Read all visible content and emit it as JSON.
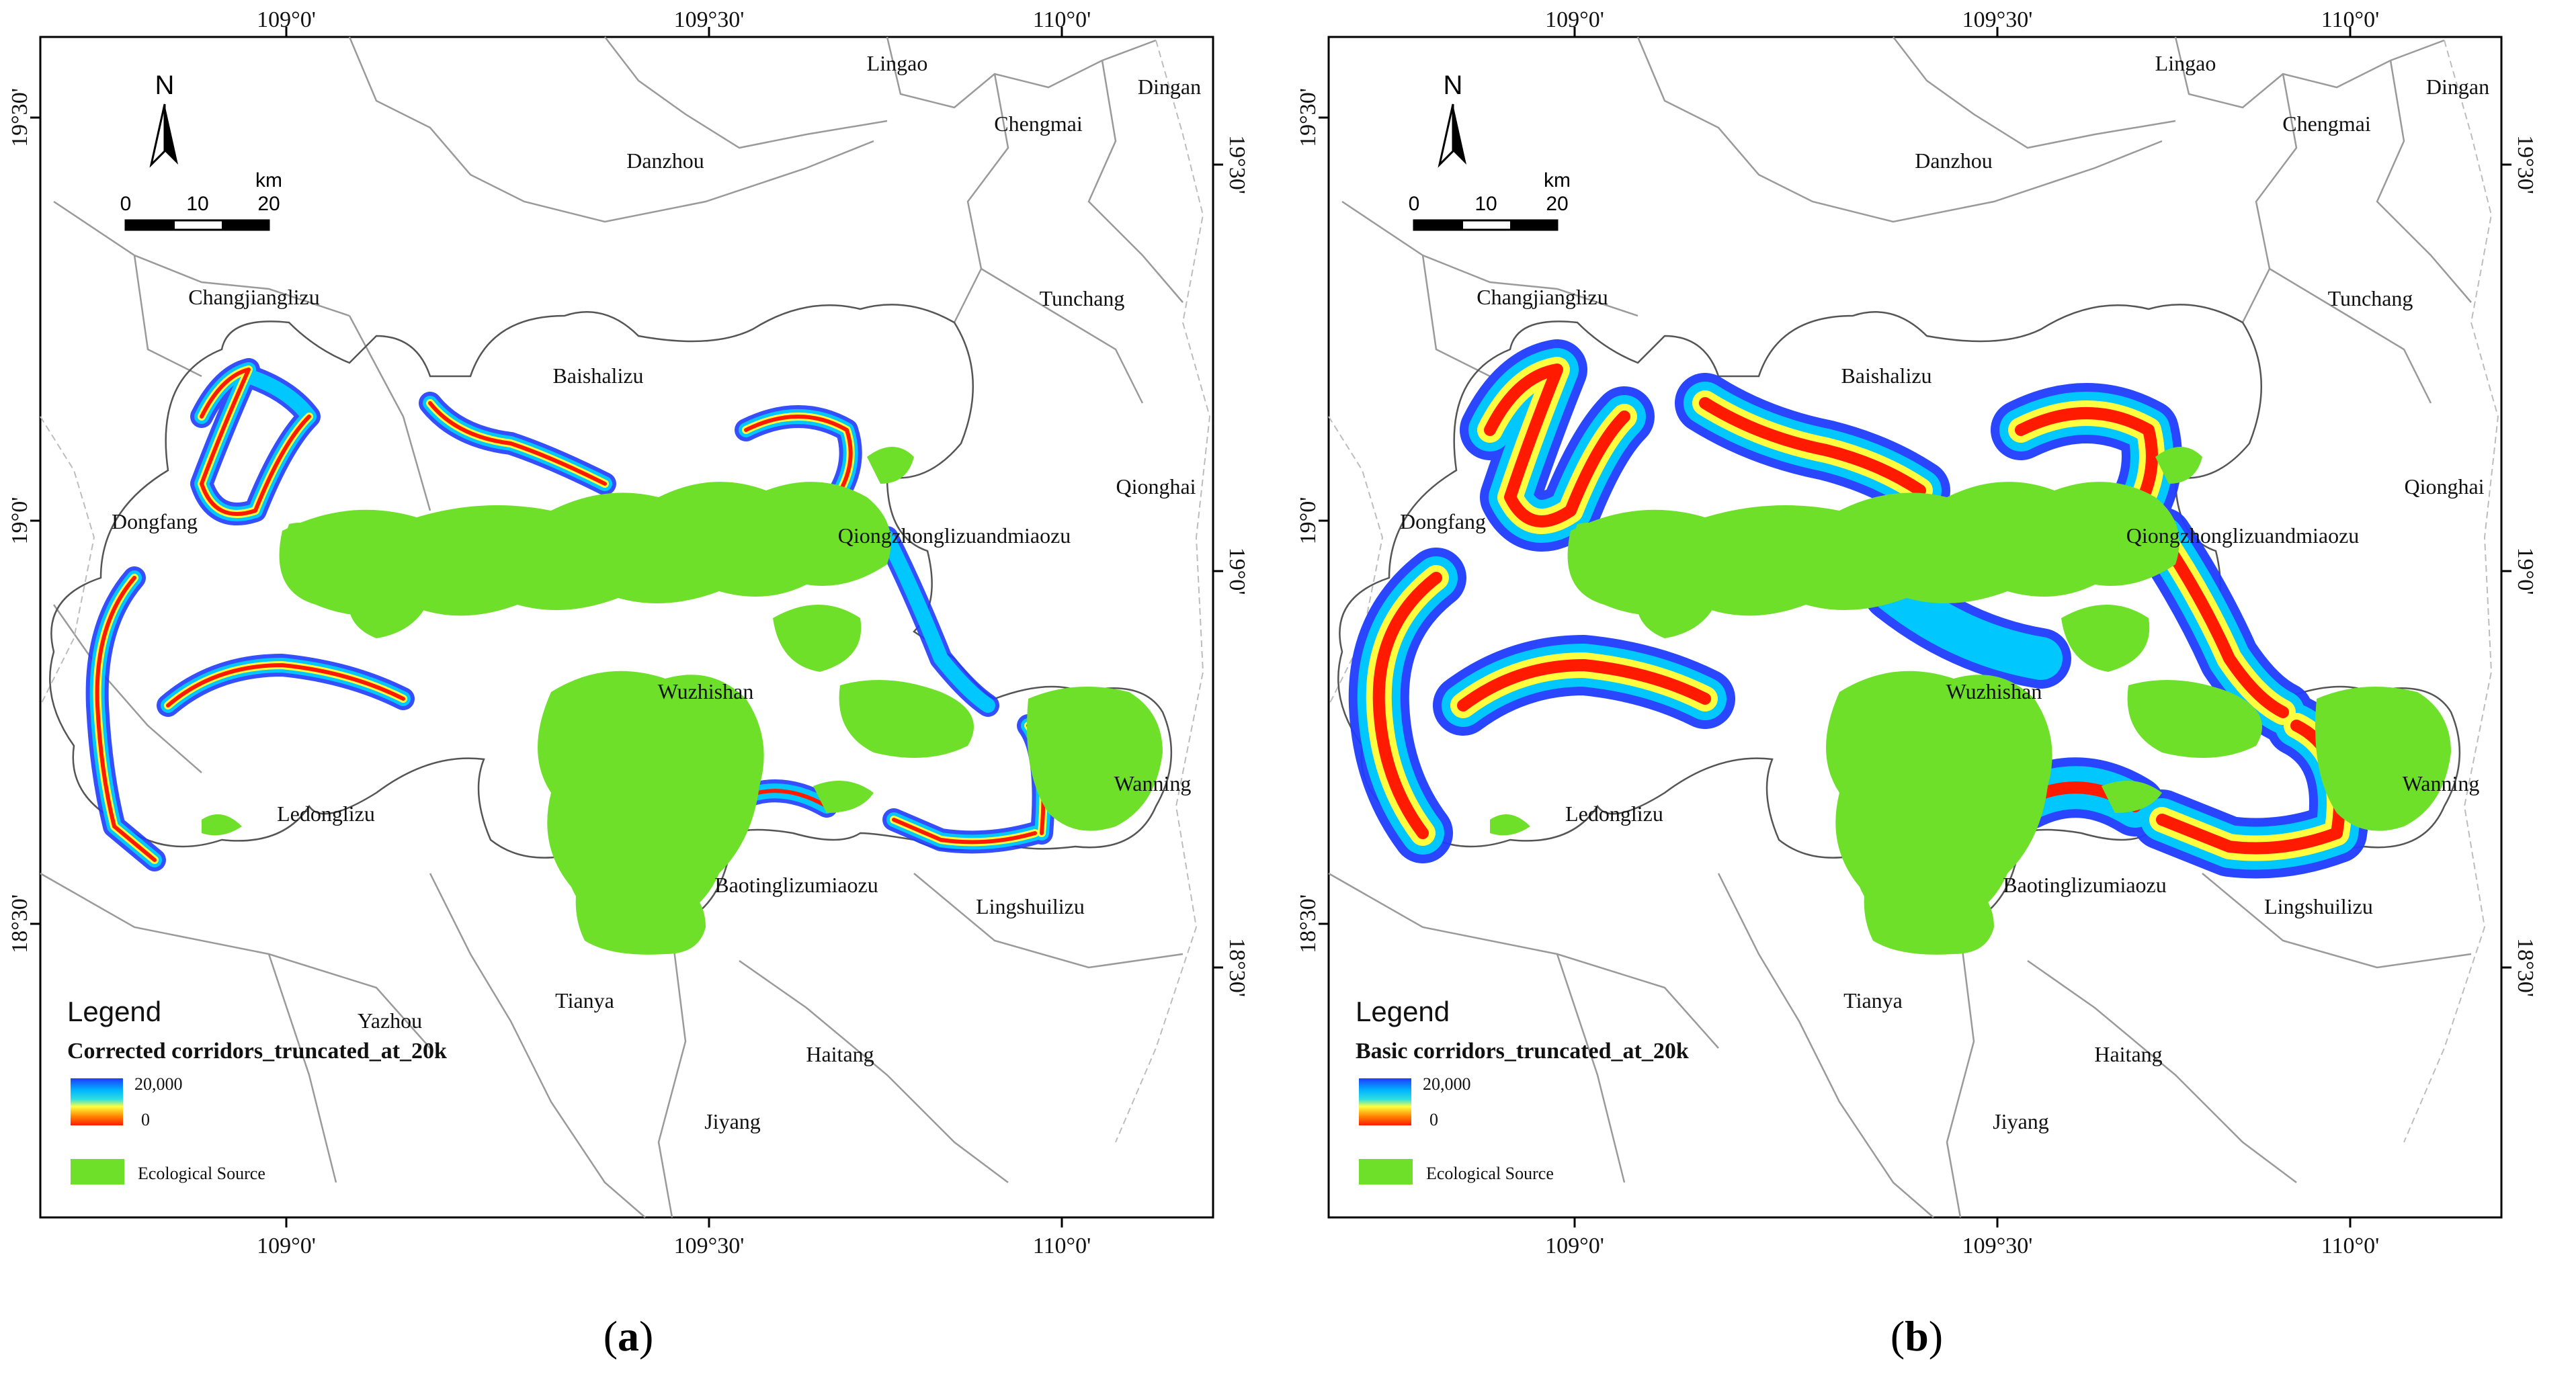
{
  "panels": [
    {
      "id": "a",
      "caption_letter": "a",
      "legend_title": "Legend",
      "legend_layer": "Corrected corridors_truncated_at_20k",
      "ramp_max": "20,000",
      "ramp_min": "0",
      "source_label": "Ecological Source",
      "north": "N",
      "scale_ticks": [
        "0",
        "10",
        "20"
      ],
      "scale_unit": "km",
      "lon_labels": [
        "109°0'",
        "109°30'",
        "110°0'"
      ],
      "lat_labels": [
        "19°30'",
        "19°0'",
        "18°30'"
      ],
      "places": [
        "Lingao",
        "Dingan",
        "Chengmai",
        "Danzhou",
        "Tunchang",
        "Changjianglizu",
        "Baishalizu",
        "Qionghai",
        "Dongfang",
        "Qiongzhonglizuandmiaozu",
        "Wuzhishan",
        "Wanning",
        "Ledonglizu",
        "Baotinglizumiaozu",
        "Lingshuilizu",
        "Yazhou",
        "Tianya",
        "Haitang",
        "Jiyang"
      ]
    },
    {
      "id": "b",
      "caption_letter": "b",
      "legend_title": "Legend",
      "legend_layer": "Basic corridors_truncated_at_20k",
      "ramp_max": "20,000",
      "ramp_min": "0",
      "source_label": "Ecological Source",
      "north": "N",
      "scale_ticks": [
        "0",
        "10",
        "20"
      ],
      "scale_unit": "km",
      "lon_labels": [
        "109°0'",
        "109°30'",
        "110°0'"
      ],
      "lat_labels": [
        "19°30'",
        "19°0'",
        "18°30'"
      ],
      "places": [
        "Lingao",
        "Dingan",
        "Chengmai",
        "Danzhou",
        "Tunchang",
        "Changjianglizu",
        "Baishalizu",
        "Qionghai",
        "Dongfang",
        "Qiongzhonglizuandmiaozu",
        "Wuzhishan",
        "Wanning",
        "Ledonglizu",
        "Baotinglizumiaozu",
        "Lingshuilizu",
        "Tianya",
        "Haitang",
        "Jiyang"
      ]
    }
  ],
  "colors": {
    "ecological_source": "#6fe02a",
    "ramp": [
      "#1f3cff",
      "#00b4ff",
      "#30e0e0",
      "#ffff40",
      "#ff8a00",
      "#ff1a00"
    ]
  }
}
